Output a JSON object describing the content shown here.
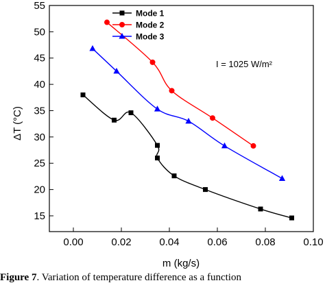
{
  "chart_data": {
    "type": "line",
    "xlabel": "m (kg/s)",
    "ylabel": "ΔT (°C)",
    "xlim": [
      -0.01,
      0.1
    ],
    "ylim": [
      12,
      55
    ],
    "xticks": [
      "0.00",
      "0.02",
      "0.04",
      "0.06",
      "0.08",
      "0.10"
    ],
    "yticks": [
      "15",
      "20",
      "25",
      "30",
      "35",
      "40",
      "45",
      "50",
      "55"
    ],
    "legend_position": "top-center",
    "annotation": "I = 1025 W/m²",
    "series": [
      {
        "name": "Mode 1",
        "marker": "square",
        "color": "#000000",
        "points": [
          {
            "x": 0.004,
            "y": 38.0
          },
          {
            "x": 0.017,
            "y": 33.2
          },
          {
            "x": 0.024,
            "y": 34.6
          },
          {
            "x": 0.035,
            "y": 28.4
          },
          {
            "x": 0.035,
            "y": 26.0
          },
          {
            "x": 0.042,
            "y": 22.6
          },
          {
            "x": 0.055,
            "y": 20.0
          },
          {
            "x": 0.078,
            "y": 16.3
          },
          {
            "x": 0.091,
            "y": 14.6
          }
        ]
      },
      {
        "name": "Mode 2",
        "marker": "circle",
        "color": "#ff0000",
        "points": [
          {
            "x": 0.014,
            "y": 51.8
          },
          {
            "x": 0.033,
            "y": 44.2
          },
          {
            "x": 0.041,
            "y": 38.8
          },
          {
            "x": 0.058,
            "y": 33.6
          },
          {
            "x": 0.075,
            "y": 28.3
          }
        ]
      },
      {
        "name": "Mode 3",
        "marker": "triangle",
        "color": "#0000ff",
        "points": [
          {
            "x": 0.008,
            "y": 46.8
          },
          {
            "x": 0.018,
            "y": 42.5
          },
          {
            "x": 0.035,
            "y": 35.3
          },
          {
            "x": 0.048,
            "y": 33.0
          },
          {
            "x": 0.063,
            "y": 28.3
          },
          {
            "x": 0.087,
            "y": 22.1
          }
        ]
      }
    ]
  },
  "caption": {
    "label": "Figure 7",
    "text": ". Variation of temperature difference as a function"
  }
}
